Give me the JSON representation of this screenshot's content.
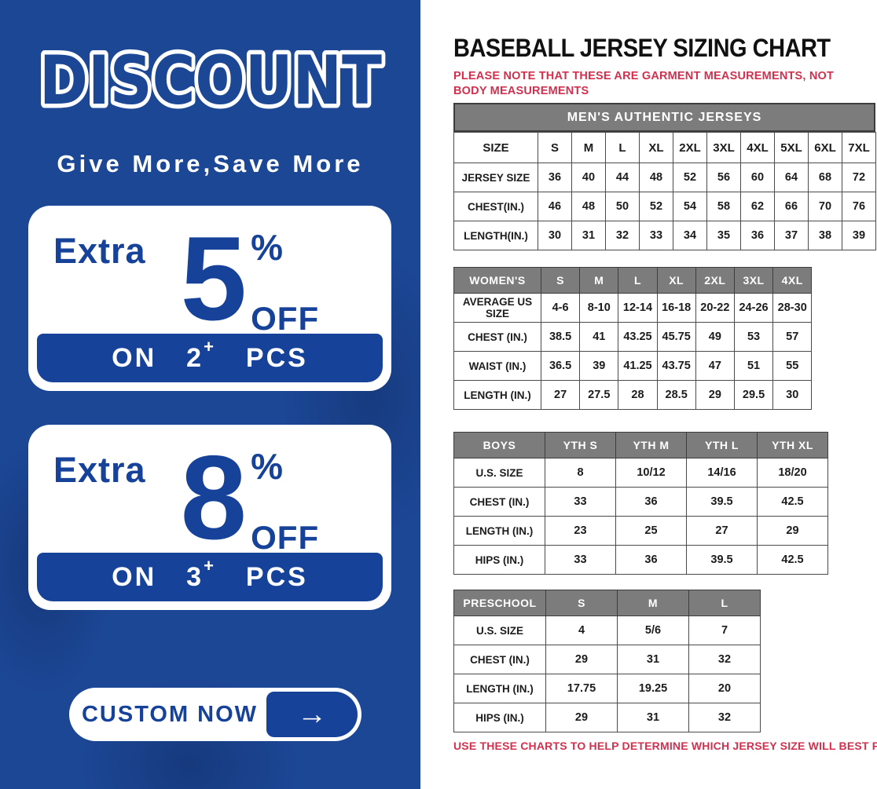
{
  "colors": {
    "banner_blue": "#1c4795",
    "deep_blue": "#17429a",
    "header_gray": "#7c7c7c",
    "note_red": "#d3304e"
  },
  "banner": {
    "title": "DISCOUNT",
    "subtitle": "Give More,Save More",
    "offers": [
      {
        "extra": "Extra",
        "value": "5",
        "percent": "%",
        "off": "OFF",
        "on": "ON",
        "qty": "2",
        "plus": "+",
        "pcs": "PCS"
      },
      {
        "extra": "Extra",
        "value": "8",
        "percent": "%",
        "off": "OFF",
        "on": "ON",
        "qty": "3",
        "plus": "+",
        "pcs": "PCS"
      }
    ],
    "cta": {
      "label": "CUSTOM NOW",
      "arrow": "→"
    }
  },
  "sizing": {
    "title": "BASEBALL JERSEY SIZING CHART",
    "note_top": "PLEASE NOTE THAT THESE ARE GARMENT MEASUREMENTS, NOT BODY MEASUREMENTS",
    "note_bottom": "USE THESE CHARTS TO HELP DETERMINE WHICH JERSEY SIZE WILL BEST FIT YOU.",
    "tables": [
      {
        "band": "MEN'S AUTHENTIC JERSEYS",
        "header_gray": false,
        "columns": [
          "SIZE",
          "S",
          "M",
          "L",
          "XL",
          "2XL",
          "3XL",
          "4XL",
          "5XL",
          "6XL",
          "7XL"
        ],
        "rows": [
          [
            "JERSEY SIZE",
            "36",
            "40",
            "44",
            "48",
            "52",
            "56",
            "60",
            "64",
            "68",
            "72"
          ],
          [
            "CHEST(IN.)",
            "46",
            "48",
            "50",
            "52",
            "54",
            "58",
            "62",
            "66",
            "70",
            "76"
          ],
          [
            "LENGTH(IN.)",
            "30",
            "31",
            "32",
            "33",
            "34",
            "35",
            "36",
            "37",
            "38",
            "39"
          ]
        ]
      },
      {
        "band": null,
        "header_gray": true,
        "columns": [
          "WOMEN'S",
          "S",
          "M",
          "L",
          "XL",
          "2XL",
          "3XL",
          "4XL"
        ],
        "rows": [
          [
            "AVERAGE US SIZE",
            "4-6",
            "8-10",
            "12-14",
            "16-18",
            "20-22",
            "24-26",
            "28-30"
          ],
          [
            "CHEST (IN.)",
            "38.5",
            "41",
            "43.25",
            "45.75",
            "49",
            "53",
            "57"
          ],
          [
            "WAIST (IN.)",
            "36.5",
            "39",
            "41.25",
            "43.75",
            "47",
            "51",
            "55"
          ],
          [
            "LENGTH (IN.)",
            "27",
            "27.5",
            "28",
            "28.5",
            "29",
            "29.5",
            "30"
          ]
        ]
      },
      {
        "band": null,
        "header_gray": true,
        "columns": [
          "BOYS",
          "YTH S",
          "YTH M",
          "YTH L",
          "YTH XL"
        ],
        "rows": [
          [
            "U.S. SIZE",
            "8",
            "10/12",
            "14/16",
            "18/20"
          ],
          [
            "CHEST (IN.)",
            "33",
            "36",
            "39.5",
            "42.5"
          ],
          [
            "LENGTH (IN.)",
            "23",
            "25",
            "27",
            "29"
          ],
          [
            "HIPS (IN.)",
            "33",
            "36",
            "39.5",
            "42.5"
          ]
        ]
      },
      {
        "band": null,
        "header_gray": true,
        "columns": [
          "PRESCHOOL",
          "S",
          "M",
          "L"
        ],
        "rows": [
          [
            "U.S. SIZE",
            "4",
            "5/6",
            "7"
          ],
          [
            "CHEST (IN.)",
            "29",
            "31",
            "32"
          ],
          [
            "LENGTH (IN.)",
            "17.75",
            "19.25",
            "20"
          ],
          [
            "HIPS (IN.)",
            "29",
            "31",
            "32"
          ]
        ]
      }
    ]
  }
}
